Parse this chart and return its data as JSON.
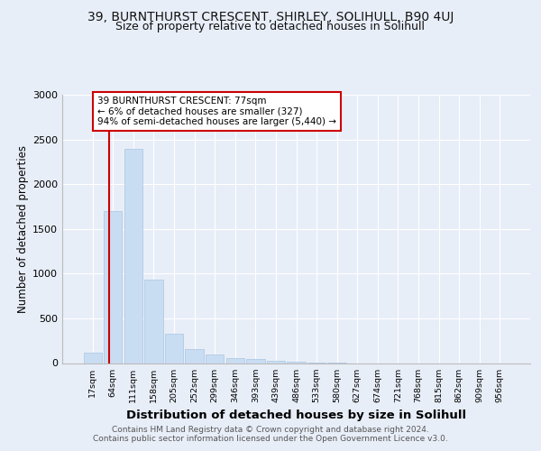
{
  "title1": "39, BURNTHURST CRESCENT, SHIRLEY, SOLIHULL, B90 4UJ",
  "title2": "Size of property relative to detached houses in Solihull",
  "xlabel": "Distribution of detached houses by size in Solihull",
  "ylabel": "Number of detached properties",
  "footer1": "Contains HM Land Registry data © Crown copyright and database right 2024.",
  "footer2": "Contains public sector information licensed under the Open Government Licence v3.0.",
  "bin_labels": [
    "17sqm",
    "64sqm",
    "111sqm",
    "158sqm",
    "205sqm",
    "252sqm",
    "299sqm",
    "346sqm",
    "393sqm",
    "439sqm",
    "486sqm",
    "533sqm",
    "580sqm",
    "627sqm",
    "674sqm",
    "721sqm",
    "768sqm",
    "815sqm",
    "862sqm",
    "909sqm",
    "956sqm"
  ],
  "bar_values": [
    120,
    1700,
    2400,
    930,
    330,
    160,
    100,
    60,
    50,
    30,
    20,
    10,
    10,
    0,
    0,
    0,
    0,
    0,
    0,
    0,
    0
  ],
  "bar_color": "#c9ddf2",
  "bar_edge_color": "#a8c4e0",
  "property_line_color": "#cc0000",
  "annotation_text": "39 BURNTHURST CRESCENT: 77sqm\n← 6% of detached houses are smaller (327)\n94% of semi-detached houses are larger (5,440) →",
  "annotation_box_color": "#ffffff",
  "annotation_box_edge_color": "#cc0000",
  "ylim": [
    0,
    3000
  ],
  "yticks": [
    0,
    500,
    1000,
    1500,
    2000,
    2500,
    3000
  ],
  "bg_color": "#e8eef8",
  "plot_bg_color": "#e8eef8",
  "title1_fontsize": 10,
  "title2_fontsize": 9,
  "xlabel_fontsize": 9.5,
  "ylabel_fontsize": 8.5,
  "footer_fontsize": 6.5
}
